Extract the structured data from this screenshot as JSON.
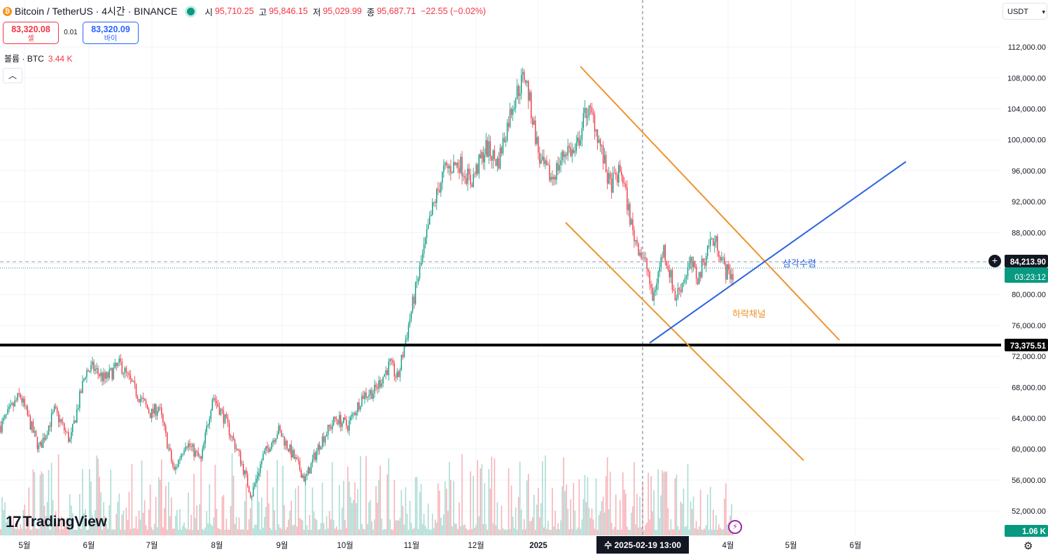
{
  "header": {
    "symbol": "Bitcoin / TetherUS · 4시간 · BINANCE",
    "coin_icon": "bitcoin-icon",
    "o_label": "시",
    "o_value": "95,710.25",
    "h_label": "고",
    "h_value": "95,846.15",
    "l_label": "저",
    "l_value": "95,029.99",
    "c_label": "종",
    "c_value": "95,687.71",
    "change": "−22.55 (−0.02%)"
  },
  "trade": {
    "sell_price": "83,320.08",
    "sell_label": "셀",
    "spread": "0.01",
    "buy_price": "83,320.09",
    "buy_label": "바이"
  },
  "volume_legend": {
    "label": "볼륨 · BTC",
    "value": "3.44 K"
  },
  "currency": "USDT",
  "brand": "TradingView",
  "colors": {
    "up": "#089981",
    "down": "#f23645",
    "channel": "#f0922e",
    "trendline": "#2f64e0",
    "support": "#000000"
  },
  "chart_data": {
    "type": "candlestick",
    "interval": "4h",
    "y_axis_ticks": [
      "112,000.00",
      "108,000.00",
      "104,000.00",
      "100,000.00",
      "96,000.00",
      "92,000.00",
      "88,000.00",
      "84,000.00",
      "80,000.00",
      "76,000.00",
      "72,000.00",
      "68,000.00",
      "64,000.00",
      "60,000.00",
      "56,000.00",
      "52,000.00"
    ],
    "x_axis_ticks": [
      "5월",
      "6월",
      "7월",
      "8월",
      "9월",
      "10월",
      "11월",
      "12월",
      "2025",
      "수 2025-02-19   13:00",
      "4월",
      "5월",
      "6월"
    ],
    "ylim": [
      49000,
      114000
    ],
    "price_path": [
      [
        0,
        63000
      ],
      [
        5,
        67000
      ],
      [
        10,
        60000
      ],
      [
        14,
        65000
      ],
      [
        18,
        61000
      ],
      [
        22,
        70000
      ],
      [
        24,
        70500
      ],
      [
        27,
        69000
      ],
      [
        31,
        71000
      ],
      [
        35,
        67500
      ],
      [
        39,
        64500
      ],
      [
        41,
        65500
      ],
      [
        45,
        57000
      ],
      [
        48,
        61000
      ],
      [
        52,
        58500
      ],
      [
        55,
        67000
      ],
      [
        58,
        64000
      ],
      [
        62,
        59000
      ],
      [
        65,
        54000
      ],
      [
        68,
        59000
      ],
      [
        72,
        62500
      ],
      [
        76,
        59000
      ],
      [
        79,
        56000
      ],
      [
        83,
        61000
      ],
      [
        87,
        64000
      ],
      [
        90,
        63000
      ],
      [
        94,
        67000
      ],
      [
        97,
        67500
      ],
      [
        101,
        71000
      ],
      [
        103,
        69000
      ],
      [
        107,
        79000
      ],
      [
        112,
        91000
      ],
      [
        115,
        96000
      ],
      [
        119,
        97000
      ],
      [
        122,
        94500
      ],
      [
        126,
        99000
      ],
      [
        129,
        97000
      ],
      [
        133,
        105000
      ],
      [
        136,
        108500
      ],
      [
        140,
        97000
      ],
      [
        143,
        95000
      ],
      [
        147,
        99000
      ],
      [
        149,
        98000
      ],
      [
        152,
        104000
      ],
      [
        154,
        102500
      ],
      [
        158,
        94000
      ],
      [
        161,
        96000
      ],
      [
        164,
        88000
      ],
      [
        168,
        83000
      ],
      [
        169,
        79000
      ],
      [
        172,
        86000
      ],
      [
        174,
        82000
      ],
      [
        175,
        79500
      ],
      [
        179,
        84000
      ],
      [
        181,
        82000
      ],
      [
        184,
        87000
      ],
      [
        186,
        86500
      ],
      [
        188,
        83000
      ],
      [
        190,
        82500
      ]
    ],
    "volume_axis_label": "1.06 K",
    "price_labels": {
      "current": "84,213.90",
      "countdown": "03:23:12",
      "support": "73,375.51"
    },
    "drawings": {
      "channel_label": "하락채널",
      "triangle_label": "삼각수렴"
    }
  }
}
